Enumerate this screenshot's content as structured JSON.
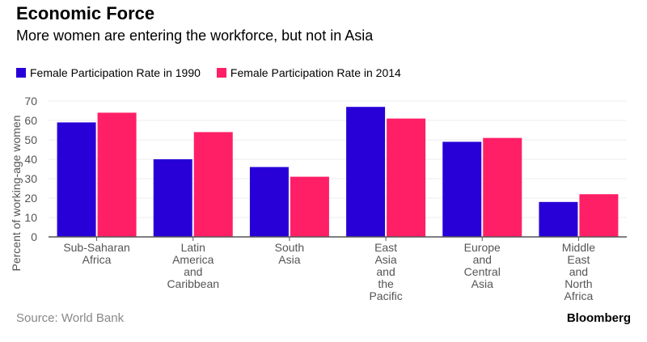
{
  "title": "Economic Force",
  "subtitle": "More women are entering the workforce, but not in Asia",
  "source": "Source: World Bank",
  "logo": "Bloomberg",
  "colors": {
    "s1990": "#2800D7",
    "s2014": "#FF1F66"
  },
  "chart_data": {
    "type": "bar",
    "ylabel": "Percent of working-age women",
    "ylim": [
      0,
      70
    ],
    "yticks": [
      0,
      10,
      20,
      30,
      40,
      50,
      60,
      70
    ],
    "grid": true,
    "legend_placement": "top-left",
    "categories": [
      [
        "Sub-Saharan",
        "Africa"
      ],
      [
        "Latin",
        "America",
        "and",
        "Caribbean"
      ],
      [
        "South",
        "Asia"
      ],
      [
        "East",
        "Asia",
        "and",
        "the",
        "Pacific"
      ],
      [
        "Europe",
        "and",
        "Central",
        "Asia"
      ],
      [
        "Middle",
        "East",
        "and",
        "North",
        "Africa"
      ]
    ],
    "series": [
      {
        "name": "Female Participation Rate in 1990",
        "values": [
          59,
          40,
          36,
          67,
          49,
          18
        ]
      },
      {
        "name": "Female Participation Rate in 2014",
        "values": [
          64,
          54,
          31,
          61,
          51,
          22
        ]
      }
    ]
  }
}
